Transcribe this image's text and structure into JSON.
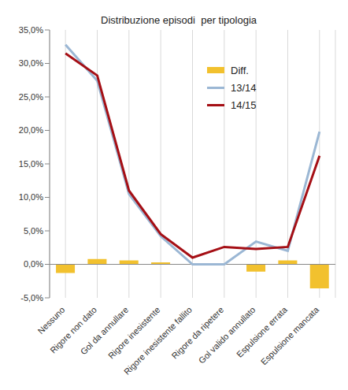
{
  "chart_data": {
    "type": "line",
    "title": "Distribuzione episodi  per tipologia",
    "categories": [
      "Nessuno",
      "Rigore non dato",
      "Gol da annullare",
      "Rigore inesistente",
      "Rigore inesistente fallito",
      "Rigore da ripetere",
      "Gol valido annullato",
      "Espulsione errata",
      "Espulsione mancata"
    ],
    "series": [
      {
        "name": "Diff.",
        "type": "bar",
        "color": "#f2c12e",
        "values": [
          -1.3,
          0.8,
          0.6,
          0.3,
          null,
          null,
          -1.1,
          0.6,
          -3.6
        ]
      },
      {
        "name": "13/14",
        "type": "line",
        "color": "#9bb7d4",
        "values": [
          32.8,
          27.4,
          10.5,
          4.2,
          0.0,
          0.0,
          3.4,
          2.0,
          19.8
        ]
      },
      {
        "name": "14/15",
        "type": "line",
        "color": "#a50f15",
        "values": [
          31.5,
          28.2,
          11.0,
          4.5,
          1.0,
          2.6,
          2.3,
          2.6,
          16.2
        ]
      }
    ],
    "ylim": [
      -5,
      35
    ],
    "yticks": [
      {
        "value": -5,
        "label": "-5,0%"
      },
      {
        "value": 0,
        "label": "0,0%"
      },
      {
        "value": 5,
        "label": "5,0%"
      },
      {
        "value": 10,
        "label": "10,0%"
      },
      {
        "value": 15,
        "label": "15,0%"
      },
      {
        "value": 20,
        "label": "20,0%"
      },
      {
        "value": 25,
        "label": "25,0%"
      },
      {
        "value": 30,
        "label": "30,0%"
      },
      {
        "value": 35,
        "label": "35,0%"
      }
    ],
    "grid": true,
    "legend": "upper right"
  }
}
